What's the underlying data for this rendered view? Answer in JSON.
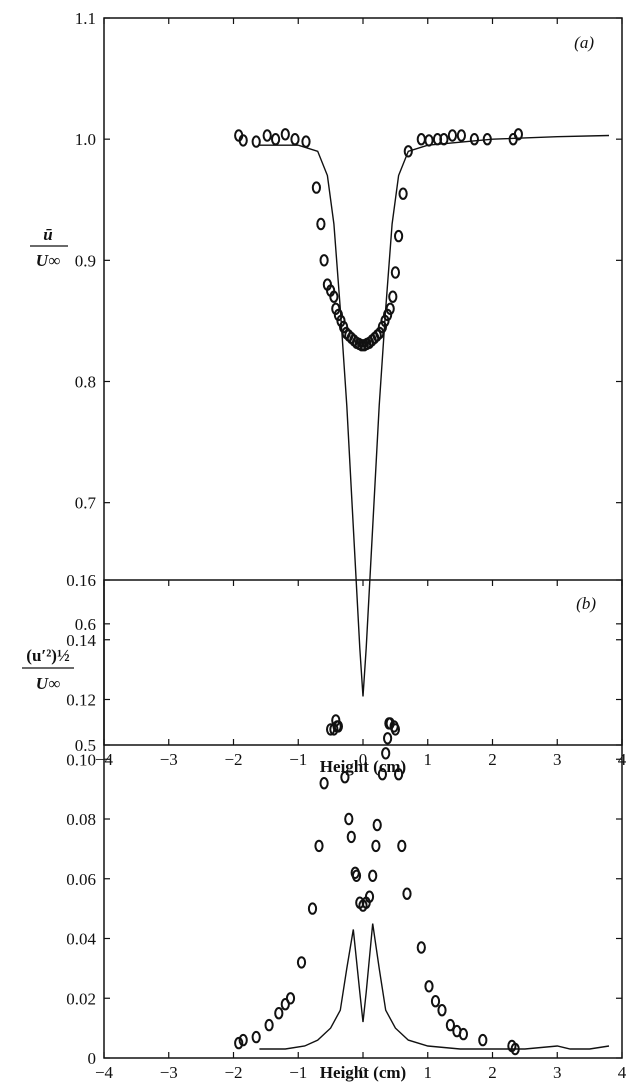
{
  "chart_data": [
    {
      "panel": "(a)",
      "type": "scatter",
      "xlabel": "Height (cm)",
      "ylabel_numerator": "ū",
      "ylabel_denominator": "U∞",
      "xlim": [
        -4,
        4
      ],
      "ylim": [
        0.5,
        1.1
      ],
      "xticks": [
        -4,
        -3,
        -2,
        -1,
        0,
        1,
        2,
        3,
        4
      ],
      "xtick_labels": [
        "−4",
        "−3",
        "−2",
        "−1",
        "0",
        "1",
        "2",
        "3",
        "4"
      ],
      "yticks": [
        0.5,
        0.6,
        0.7,
        0.8,
        0.9,
        1.0,
        1.1
      ],
      "ytick_labels": [
        "0.5",
        "0.6",
        "0.7",
        "0.8",
        "0.9",
        "1.0",
        "1.1"
      ],
      "series": [
        {
          "kind": "line",
          "x": [
            -1.6,
            -1.0,
            -0.7,
            -0.55,
            -0.45,
            -0.35,
            -0.25,
            -0.15,
            -0.05,
            0.0,
            0.05,
            0.15,
            0.25,
            0.35,
            0.45,
            0.55,
            0.7,
            1.0,
            2.0,
            3.0,
            3.8
          ],
          "y": [
            0.995,
            0.995,
            0.99,
            0.97,
            0.93,
            0.86,
            0.78,
            0.68,
            0.58,
            0.54,
            0.58,
            0.68,
            0.78,
            0.86,
            0.93,
            0.97,
            0.99,
            0.995,
            1.0,
            1.002,
            1.003
          ]
        },
        {
          "kind": "markers",
          "x": [
            -1.92,
            -1.85,
            -1.65,
            -1.48,
            -1.35,
            -1.2,
            -1.05,
            -0.88,
            -0.72,
            -0.65,
            -0.6,
            -0.55,
            -0.5,
            -0.45,
            -0.42,
            -0.38,
            -0.34,
            -0.3,
            -0.26,
            -0.22,
            -0.18,
            -0.14,
            -0.1,
            -0.06,
            -0.02,
            0.02,
            0.06,
            0.1,
            0.14,
            0.18,
            0.22,
            0.26,
            0.3,
            0.34,
            0.38,
            0.42,
            0.46,
            0.5,
            0.55,
            0.62,
            0.7,
            0.9,
            1.02,
            1.15,
            1.25,
            1.38,
            1.52,
            1.72,
            1.92,
            2.32,
            2.4
          ],
          "y": [
            1.003,
            0.999,
            0.998,
            1.003,
            1.0,
            1.004,
            1.0,
            0.998,
            0.96,
            0.93,
            0.9,
            0.88,
            0.875,
            0.87,
            0.86,
            0.855,
            0.85,
            0.845,
            0.84,
            0.838,
            0.836,
            0.834,
            0.832,
            0.831,
            0.83,
            0.83,
            0.831,
            0.832,
            0.834,
            0.836,
            0.838,
            0.84,
            0.845,
            0.85,
            0.855,
            0.86,
            0.87,
            0.89,
            0.92,
            0.955,
            0.99,
            1.0,
            0.999,
            1.0,
            1.0,
            1.003,
            1.003,
            1.0,
            1.0,
            1.0,
            1.004
          ]
        }
      ]
    },
    {
      "panel": "(b)",
      "type": "scatter",
      "xlabel": "Height (cm)",
      "ylabel_numerator": "(u′²)½",
      "ylabel_denominator": "U∞",
      "xlim": [
        -4,
        4
      ],
      "ylim": [
        0,
        0.16
      ],
      "xticks": [
        -4,
        -3,
        -2,
        -1,
        0,
        1,
        2,
        3,
        4
      ],
      "xtick_labels": [
        "−4",
        "−3",
        "−2",
        "−1",
        "0",
        "1",
        "2",
        "3",
        "4"
      ],
      "yticks": [
        0,
        0.02,
        0.04,
        0.06,
        0.08,
        0.1,
        0.12,
        0.14,
        0.16
      ],
      "ytick_labels": [
        "0",
        "0.02",
        "0.04",
        "0.06",
        "0.08",
        "0.10",
        "0.12",
        "0.14",
        "0.16"
      ],
      "series": [
        {
          "kind": "line",
          "x": [
            -1.6,
            -1.2,
            -0.9,
            -0.7,
            -0.5,
            -0.35,
            -0.25,
            -0.15,
            -0.05,
            0.0,
            0.05,
            0.15,
            0.25,
            0.35,
            0.5,
            0.7,
            1.0,
            1.5,
            2.0,
            2.5,
            3.0,
            3.2,
            3.5,
            3.8
          ],
          "y": [
            0.003,
            0.003,
            0.004,
            0.006,
            0.01,
            0.016,
            0.03,
            0.043,
            0.022,
            0.012,
            0.022,
            0.045,
            0.03,
            0.016,
            0.01,
            0.006,
            0.004,
            0.003,
            0.003,
            0.003,
            0.004,
            0.003,
            0.003,
            0.004
          ]
        },
        {
          "kind": "markers",
          "x": [
            -1.92,
            -1.85,
            -1.65,
            -1.45,
            -1.3,
            -1.2,
            -1.12,
            -0.95,
            -0.78,
            -0.68,
            -0.6,
            -0.5,
            -0.45,
            -0.42,
            -0.4,
            -0.38,
            -0.28,
            -0.22,
            -0.18,
            -0.12,
            -0.1,
            -0.05,
            0.0,
            0.05,
            0.1,
            0.15,
            0.2,
            0.22,
            0.3,
            0.35,
            0.38,
            0.4,
            0.42,
            0.48,
            0.5,
            0.55,
            0.6,
            0.68,
            0.9,
            1.02,
            1.12,
            1.22,
            1.35,
            1.45,
            1.55,
            1.85,
            2.3,
            2.35
          ],
          "y": [
            0.005,
            0.006,
            0.007,
            0.011,
            0.015,
            0.018,
            0.02,
            0.032,
            0.05,
            0.071,
            0.092,
            0.11,
            0.11,
            0.113,
            0.111,
            0.111,
            0.094,
            0.08,
            0.074,
            0.062,
            0.061,
            0.052,
            0.051,
            0.052,
            0.054,
            0.061,
            0.071,
            0.078,
            0.095,
            0.102,
            0.107,
            0.112,
            0.112,
            0.111,
            0.11,
            0.095,
            0.071,
            0.055,
            0.037,
            0.024,
            0.019,
            0.016,
            0.011,
            0.009,
            0.008,
            0.006,
            0.004,
            0.003
          ]
        }
      ]
    }
  ]
}
